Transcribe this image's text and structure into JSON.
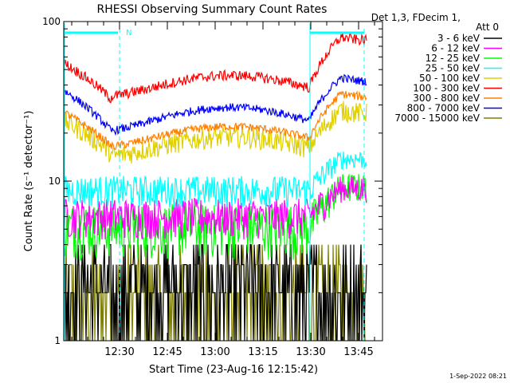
{
  "chart_data": {
    "type": "line",
    "title": "RHESSI Observing Summary Count Rates",
    "xlabel": "Start Time (23-Aug-16 12:15:42)",
    "ylabel": "Count Rate (s⁻¹ detector⁻¹)",
    "yscale": "log",
    "ylim": [
      1,
      100
    ],
    "xlim_minutes": [
      12.5,
      85.0
    ],
    "x_ticks": [
      {
        "minute": 30,
        "label": "12:30"
      },
      {
        "minute": 45,
        "label": "12:45"
      },
      {
        "minute": 60,
        "label": "13:00"
      },
      {
        "minute": 75,
        "label": "13:15"
      },
      {
        "minute": 90,
        "label": "13:30"
      },
      {
        "minute": 105,
        "label": "13:45"
      }
    ],
    "y_ticks": [
      {
        "value": 1,
        "label": "1"
      },
      {
        "value": 10,
        "label": "10"
      },
      {
        "value": 100,
        "label": "100"
      }
    ],
    "legend_header": [
      "Det 1,3, FDecim 1,",
      "Att 0"
    ],
    "legend_position": "right",
    "timestamp": "1-Sep-2022 08:21",
    "annotation_N": "N",
    "series": [
      {
        "name": "3 - 6 keV",
        "color": "#000000",
        "approx_level": [
          1.0,
          4.0
        ]
      },
      {
        "name": "6 - 12 keV",
        "color": "#ff00ff",
        "approx_level": [
          4.5,
          8.5
        ]
      },
      {
        "name": "12 - 25 keV",
        "color": "#00ff00",
        "approx_level": [
          3.5,
          9.0
        ]
      },
      {
        "name": "25 - 50 keV",
        "color": "#00ffff",
        "approx_level": [
          7.0,
          14.0
        ]
      },
      {
        "name": "50 - 100 keV",
        "color": "#e0d000",
        "approx_level": [
          13.0,
          30.0
        ]
      },
      {
        "name": "100 - 300 keV",
        "color": "#ff0000",
        "approx_level": [
          30.0,
          75.0
        ]
      },
      {
        "name": "300 - 800 keV",
        "color": "#ff8000",
        "approx_level": [
          15.0,
          40.0
        ]
      },
      {
        "name": "800 - 7000 keV",
        "color": "#0000ff",
        "approx_level": [
          18.0,
          43.0
        ]
      },
      {
        "name": "7000 - 15000 keV",
        "color": "#808000",
        "approx_level": [
          1.0,
          4.0
        ]
      }
    ]
  }
}
